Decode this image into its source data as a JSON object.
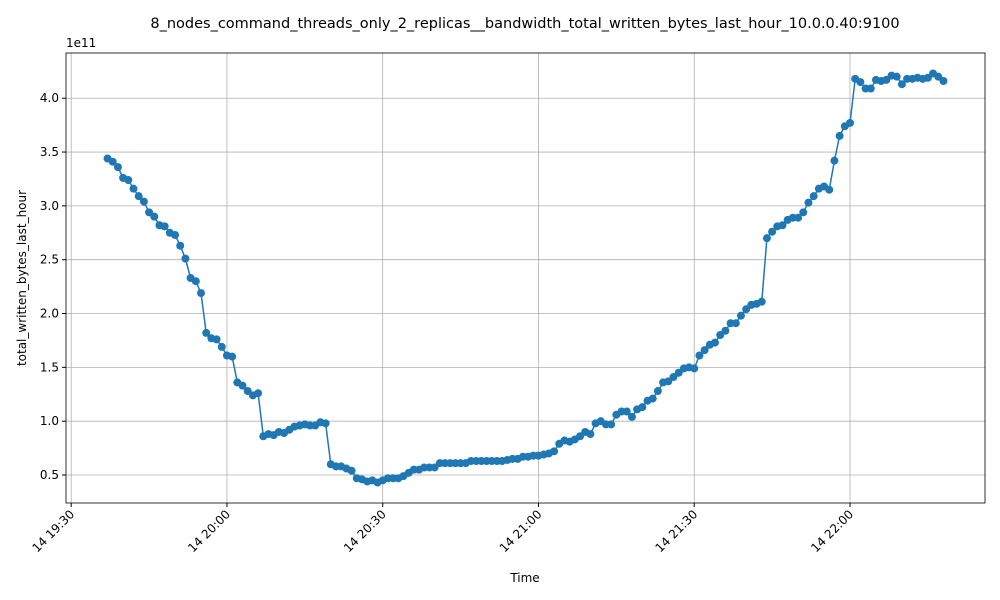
{
  "chart_data": {
    "type": "line",
    "title": "8_nodes_command_threads_only_2_replicas__bandwidth_total_written_bytes_last_hour_10.0.0.40:9100",
    "x_label": "Time",
    "y_label": "total_written_bytes_last_hour",
    "y_offset_label": "1e11",
    "color": "#1f77b4",
    "grid": true,
    "x": [
      "14 19:37",
      "14 19:38",
      "14 19:39",
      "14 19:40",
      "14 19:41",
      "14 19:42",
      "14 19:43",
      "14 19:44",
      "14 19:45",
      "14 19:46",
      "14 19:47",
      "14 19:48",
      "14 19:49",
      "14 19:50",
      "14 19:51",
      "14 19:52",
      "14 19:53",
      "14 19:54",
      "14 19:55",
      "14 19:56",
      "14 19:57",
      "14 19:58",
      "14 19:59",
      "14 20:00",
      "14 20:01",
      "14 20:02",
      "14 20:03",
      "14 20:04",
      "14 20:05",
      "14 20:06",
      "14 20:07",
      "14 20:08",
      "14 20:09",
      "14 20:10",
      "14 20:11",
      "14 20:12",
      "14 20:13",
      "14 20:14",
      "14 20:15",
      "14 20:16",
      "14 20:17",
      "14 20:18",
      "14 20:19",
      "14 20:20",
      "14 20:21",
      "14 20:22",
      "14 20:23",
      "14 20:24",
      "14 20:25",
      "14 20:26",
      "14 20:27",
      "14 20:28",
      "14 20:29",
      "14 20:30",
      "14 20:31",
      "14 20:32",
      "14 20:33",
      "14 20:34",
      "14 20:35",
      "14 20:36",
      "14 20:37",
      "14 20:38",
      "14 20:39",
      "14 20:40",
      "14 20:41",
      "14 20:42",
      "14 20:43",
      "14 20:44",
      "14 20:45",
      "14 20:46",
      "14 20:47",
      "14 20:48",
      "14 20:49",
      "14 20:50",
      "14 20:51",
      "14 20:52",
      "14 20:53",
      "14 20:54",
      "14 20:55",
      "14 20:56",
      "14 20:57",
      "14 20:58",
      "14 20:59",
      "14 21:00",
      "14 21:01",
      "14 21:02",
      "14 21:03",
      "14 21:04",
      "14 21:05",
      "14 21:06",
      "14 21:07",
      "14 21:08",
      "14 21:09",
      "14 21:10",
      "14 21:11",
      "14 21:12",
      "14 21:13",
      "14 21:14",
      "14 21:15",
      "14 21:16",
      "14 21:17",
      "14 21:18",
      "14 21:19",
      "14 21:20",
      "14 21:21",
      "14 21:22",
      "14 21:23",
      "14 21:24",
      "14 21:25",
      "14 21:26",
      "14 21:27",
      "14 21:28",
      "14 21:29",
      "14 21:30",
      "14 21:31",
      "14 21:32",
      "14 21:33",
      "14 21:34",
      "14 21:35",
      "14 21:36",
      "14 21:37",
      "14 21:38",
      "14 21:39",
      "14 21:40",
      "14 21:41",
      "14 21:42",
      "14 21:43",
      "14 21:44",
      "14 21:45",
      "14 21:46",
      "14 21:47",
      "14 21:48",
      "14 21:49",
      "14 21:50",
      "14 21:51",
      "14 21:52",
      "14 21:53",
      "14 21:54",
      "14 21:55",
      "14 21:56",
      "14 21:57",
      "14 21:58",
      "14 21:59",
      "14 22:00",
      "14 22:01",
      "14 22:02",
      "14 22:03",
      "14 22:04",
      "14 22:05",
      "14 22:06",
      "14 22:07",
      "14 22:08",
      "14 22:09",
      "14 22:10",
      "14 22:11",
      "14 22:12",
      "14 22:13",
      "14 22:14",
      "14 22:15",
      "14 22:16",
      "14 22:17",
      "14 22:18"
    ],
    "values": [
      3.44,
      3.41,
      3.36,
      3.26,
      3.24,
      3.16,
      3.09,
      3.04,
      2.94,
      2.9,
      2.82,
      2.81,
      2.75,
      2.73,
      2.63,
      2.51,
      2.33,
      2.3,
      2.19,
      1.82,
      1.77,
      1.76,
      1.69,
      1.61,
      1.6,
      1.36,
      1.33,
      1.28,
      1.24,
      1.26,
      0.86,
      0.88,
      0.87,
      0.9,
      0.89,
      0.92,
      0.95,
      0.96,
      0.97,
      0.96,
      0.96,
      0.99,
      0.98,
      0.6,
      0.58,
      0.58,
      0.56,
      0.54,
      0.47,
      0.46,
      0.44,
      0.45,
      0.43,
      0.45,
      0.47,
      0.47,
      0.47,
      0.49,
      0.52,
      0.55,
      0.55,
      0.57,
      0.57,
      0.57,
      0.61,
      0.61,
      0.61,
      0.61,
      0.61,
      0.61,
      0.63,
      0.63,
      0.63,
      0.63,
      0.63,
      0.63,
      0.63,
      0.64,
      0.65,
      0.65,
      0.67,
      0.67,
      0.68,
      0.68,
      0.69,
      0.7,
      0.72,
      0.79,
      0.82,
      0.81,
      0.83,
      0.86,
      0.9,
      0.88,
      0.98,
      1.0,
      0.97,
      0.97,
      1.06,
      1.09,
      1.09,
      1.04,
      1.11,
      1.13,
      1.19,
      1.21,
      1.28,
      1.36,
      1.37,
      1.41,
      1.45,
      1.49,
      1.5,
      1.49,
      1.61,
      1.66,
      1.71,
      1.73,
      1.8,
      1.84,
      1.91,
      1.91,
      1.98,
      2.04,
      2.08,
      2.09,
      2.11,
      2.7,
      2.76,
      2.81,
      2.82,
      2.87,
      2.89,
      2.89,
      2.94,
      3.03,
      3.09,
      3.16,
      3.18,
      3.15,
      3.42,
      3.65,
      3.74,
      3.77,
      4.18,
      4.15,
      4.09,
      4.09,
      4.17,
      4.16,
      4.17,
      4.21,
      4.2,
      4.13,
      4.18,
      4.18,
      4.19,
      4.18,
      4.19,
      4.23,
      4.2,
      4.16
    ],
    "xlim": [
      "14 19:29",
      "14 22:26"
    ],
    "xticks": [
      "14 19:30",
      "14 20:00",
      "14 20:30",
      "14 21:00",
      "14 21:30",
      "14 22:00"
    ],
    "ylim": [
      0.24,
      4.42
    ],
    "yticks": [
      {
        "value": 0.5,
        "label": "0.5"
      },
      {
        "value": 1,
        "label": "1.0"
      },
      {
        "value": 1.5,
        "label": "1.5"
      },
      {
        "value": 2,
        "label": "2.0"
      },
      {
        "value": 2.5,
        "label": "2.5"
      },
      {
        "value": 3,
        "label": "3.0"
      },
      {
        "value": 3.5,
        "label": "3.5"
      },
      {
        "value": 4,
        "label": "4.0"
      }
    ]
  }
}
